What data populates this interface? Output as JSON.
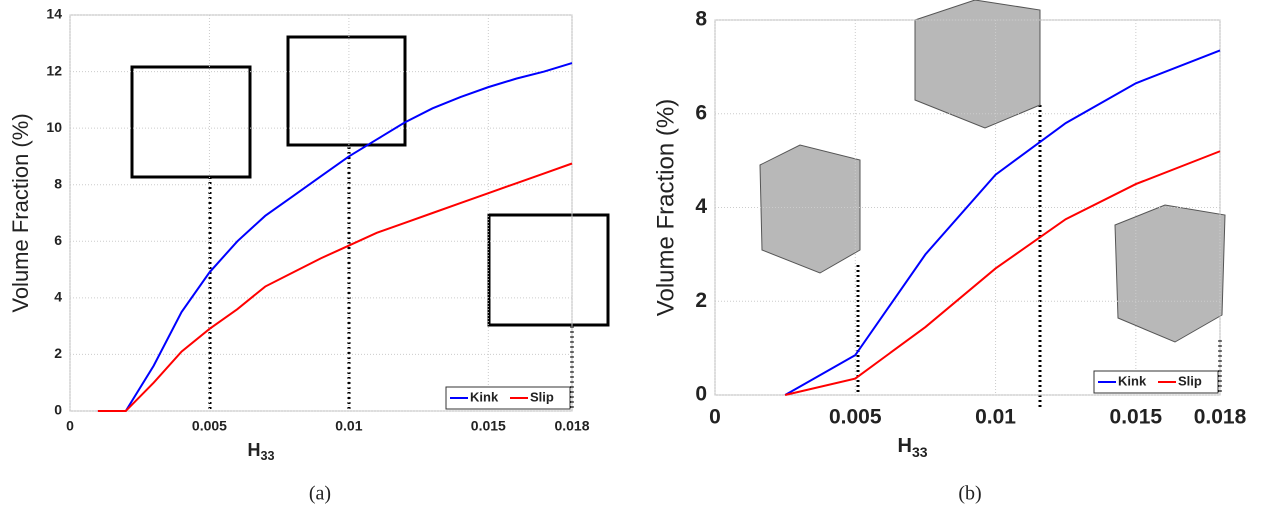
{
  "chart_data": [
    {
      "type": "line",
      "caption": "(a)",
      "y_label": "Volume Fraction (%)",
      "x_label": "H",
      "x_label_sub": "33",
      "xlim": [
        0,
        0.018
      ],
      "xticks": [
        0,
        0.005,
        0.01,
        0.015,
        0.018
      ],
      "ylim": [
        0,
        14
      ],
      "yticks": [
        0,
        2,
        4,
        6,
        8,
        10,
        12,
        14
      ],
      "grid": true,
      "legend": "lower right",
      "x": [
        0.001,
        0.002,
        0.003,
        0.004,
        0.005,
        0.006,
        0.007,
        0.008,
        0.009,
        0.01,
        0.011,
        0.012,
        0.013,
        0.014,
        0.015,
        0.016,
        0.017,
        0.018
      ],
      "series": [
        {
          "name": "Kink",
          "color": "#0000ff",
          "values": [
            0,
            0,
            1.6,
            3.5,
            4.9,
            6.0,
            6.9,
            7.6,
            8.3,
            9.0,
            9.6,
            10.2,
            10.7,
            11.1,
            11.45,
            11.75,
            12.0,
            12.3
          ]
        },
        {
          "name": "Slip",
          "color": "#ff0000",
          "values": [
            0,
            0,
            1.0,
            2.1,
            2.9,
            3.6,
            4.4,
            4.9,
            5.4,
            5.85,
            6.3,
            6.65,
            7.0,
            7.35,
            7.7,
            8.05,
            8.4,
            8.75
          ]
        }
      ]
    },
    {
      "type": "line",
      "caption": "(b)",
      "y_label": "Volume Fraction (%)",
      "x_label": "H",
      "x_label_sub": "33",
      "xlim": [
        0,
        0.018
      ],
      "xticks": [
        0,
        0.005,
        0.01,
        0.015,
        0.018
      ],
      "ylim": [
        0,
        8
      ],
      "yticks": [
        0,
        2,
        4,
        6,
        8
      ],
      "grid": true,
      "legend": "lower right",
      "x": [
        0.0025,
        0.005,
        0.0075,
        0.01,
        0.0125,
        0.015,
        0.018
      ],
      "series": [
        {
          "name": "Kink",
          "color": "#0000ff",
          "values": [
            0,
            0.85,
            3.0,
            4.7,
            5.8,
            6.65,
            7.35
          ]
        },
        {
          "name": "Slip",
          "color": "#ff0000",
          "values": [
            0,
            0.35,
            1.45,
            2.7,
            3.75,
            4.5,
            5.2
          ]
        }
      ]
    }
  ]
}
